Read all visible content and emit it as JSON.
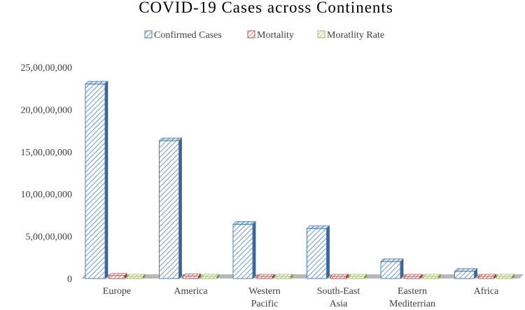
{
  "chart_data": {
    "type": "bar",
    "title": "COVID-19 Cases across Continents",
    "categories": [
      [
        "Europe"
      ],
      [
        "America"
      ],
      [
        "Western",
        "Pacific"
      ],
      [
        "South-East",
        "Asia"
      ],
      [
        "Eastern",
        "Mediterrian"
      ],
      [
        "Africa"
      ]
    ],
    "series": [
      {
        "name": "Confirmed Cases",
        "color": "#4a7ebb",
        "values": [
          230000000,
          163000000,
          64000000,
          59000000,
          20000000,
          8500000
        ]
      },
      {
        "name": "Mortality",
        "color": "#c0504d",
        "values": [
          3500000,
          3000000,
          1200000,
          1000000,
          500000,
          200000
        ]
      },
      {
        "name": "Moratlity Rate",
        "color": "#9bbb59",
        "values": [
          2,
          2,
          1,
          1,
          2,
          2
        ]
      }
    ],
    "yticks": [
      "0",
      "5,00,00,000",
      "10,00,00,000",
      "15,00,00,000",
      "20,00,00,000",
      "25,00,00,000"
    ],
    "ylim": [
      0,
      250000000
    ],
    "legend_position": "top",
    "grid": false
  }
}
